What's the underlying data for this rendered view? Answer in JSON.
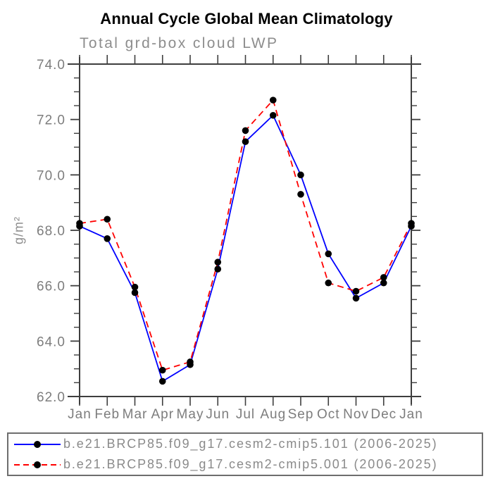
{
  "title": "Annual Cycle Global Mean Climatology",
  "subtitle": "Total grd-box cloud LWP",
  "chart_data": {
    "type": "line",
    "title": "Annual Cycle Global Mean Climatology",
    "subtitle": "Total grd-box cloud LWP",
    "ylabel": "g/m²",
    "xlabel": "",
    "x_categories": [
      "Jan",
      "Feb",
      "Mar",
      "Apr",
      "May",
      "Jun",
      "Jul",
      "Aug",
      "Sep",
      "Oct",
      "Nov",
      "Dec",
      "Jan"
    ],
    "ylim": [
      62.0,
      74.0
    ],
    "y_major_step": 2.0,
    "y_minor_step": 0.5,
    "y_tick_labels": [
      "62.0",
      "64.0",
      "66.0",
      "68.0",
      "70.0",
      "72.0",
      "74.0"
    ],
    "grid": false,
    "legend_position": "bottom",
    "axis_color": "#3e3e3e",
    "tick_label_color": "#7d7d7d",
    "marker": "filled-circle",
    "marker_color": "#000000",
    "series": [
      {
        "name": "b.e21.BRCP85.f09_g17.cesm2-cmip5.101 (2006-2025)",
        "color": "#0000ff",
        "line_style": "solid",
        "values": [
          68.15,
          67.7,
          65.75,
          62.55,
          63.15,
          66.6,
          71.2,
          72.15,
          70.0,
          67.15,
          65.55,
          66.1,
          68.15
        ]
      },
      {
        "name": "b.e21.BRCP85.f09_g17.cesm2-cmip5.001 (2006-2025)",
        "color": "#ff0000",
        "line_style": "dashed",
        "values": [
          68.25,
          68.4,
          65.95,
          62.95,
          63.25,
          66.85,
          71.6,
          72.7,
          69.3,
          66.1,
          65.8,
          66.3,
          68.25
        ]
      }
    ]
  }
}
